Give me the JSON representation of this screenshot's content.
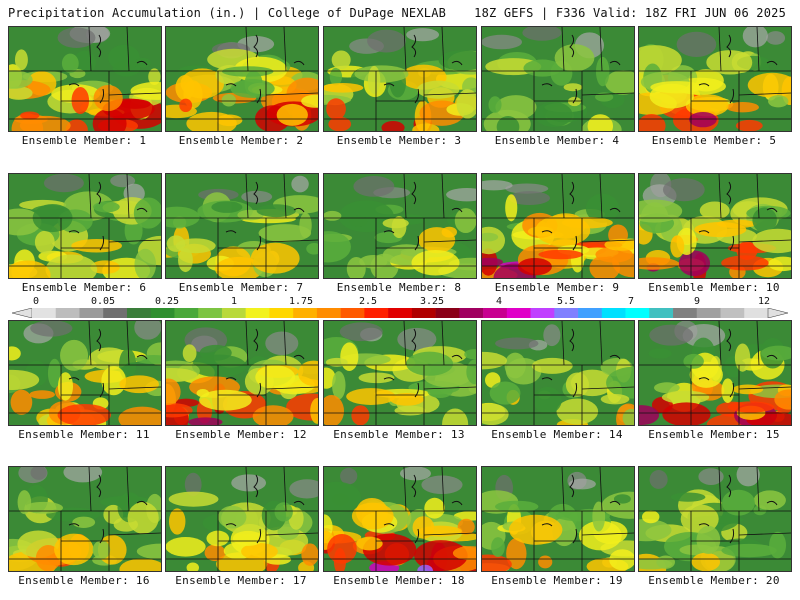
{
  "header": {
    "title": "Precipitation Accumulation (in.) | College of DuPage NEXLAB",
    "run_info": "18Z GEFS | F336 Valid: 18Z FRI JUN 06 2025"
  },
  "colorbar": {
    "tick_labels": [
      "0",
      "0.05",
      "0.25",
      "1",
      "1.75",
      "2.5",
      "3.25",
      "4",
      "5.5",
      "7",
      "9",
      "12"
    ],
    "colors": [
      "#e2e2e2",
      "#bdbdbd",
      "#9a9a9a",
      "#6f6f6f",
      "#3a7d3a",
      "#2f8f2f",
      "#4aa83a",
      "#7cc442",
      "#b9d93a",
      "#f2f21e",
      "#ffd700",
      "#ffb000",
      "#ff8c00",
      "#ff5a00",
      "#ff2000",
      "#e00000",
      "#b00000",
      "#8a0018",
      "#a00060",
      "#c80090",
      "#e000c8",
      "#c040ff",
      "#8080ff",
      "#40a0ff",
      "#00e0ff",
      "#00ffff",
      "#40c0c0",
      "#808080",
      "#a0a0a0",
      "#c0c0c0",
      "#e0e0e0"
    ]
  },
  "members": [
    {
      "label": "Ensemble Member: 1",
      "intensity": 0.75
    },
    {
      "label": "Ensemble Member: 2",
      "intensity": 0.7
    },
    {
      "label": "Ensemble Member: 3",
      "intensity": 0.6
    },
    {
      "label": "Ensemble Member: 4",
      "intensity": 0.2
    },
    {
      "label": "Ensemble Member: 5",
      "intensity": 0.7
    },
    {
      "label": "Ensemble Member: 6",
      "intensity": 0.45
    },
    {
      "label": "Ensemble Member: 7",
      "intensity": 0.4
    },
    {
      "label": "Ensemble Member: 8",
      "intensity": 0.3
    },
    {
      "label": "Ensemble Member: 9",
      "intensity": 0.85
    },
    {
      "label": "Ensemble Member: 10",
      "intensity": 0.75
    },
    {
      "label": "Ensemble Member: 11",
      "intensity": 0.55
    },
    {
      "label": "Ensemble Member: 12",
      "intensity": 0.8
    },
    {
      "label": "Ensemble Member: 13",
      "intensity": 0.45
    },
    {
      "label": "Ensemble Member: 14",
      "intensity": 0.25
    },
    {
      "label": "Ensemble Member: 15",
      "intensity": 0.8
    },
    {
      "label": "Ensemble Member: 16",
      "intensity": 0.5
    },
    {
      "label": "Ensemble Member: 17",
      "intensity": 0.5
    },
    {
      "label": "Ensemble Member: 18",
      "intensity": 0.9
    },
    {
      "label": "Ensemble Member: 19",
      "intensity": 0.45
    },
    {
      "label": "Ensemble Member: 20",
      "intensity": 0.3
    }
  ]
}
